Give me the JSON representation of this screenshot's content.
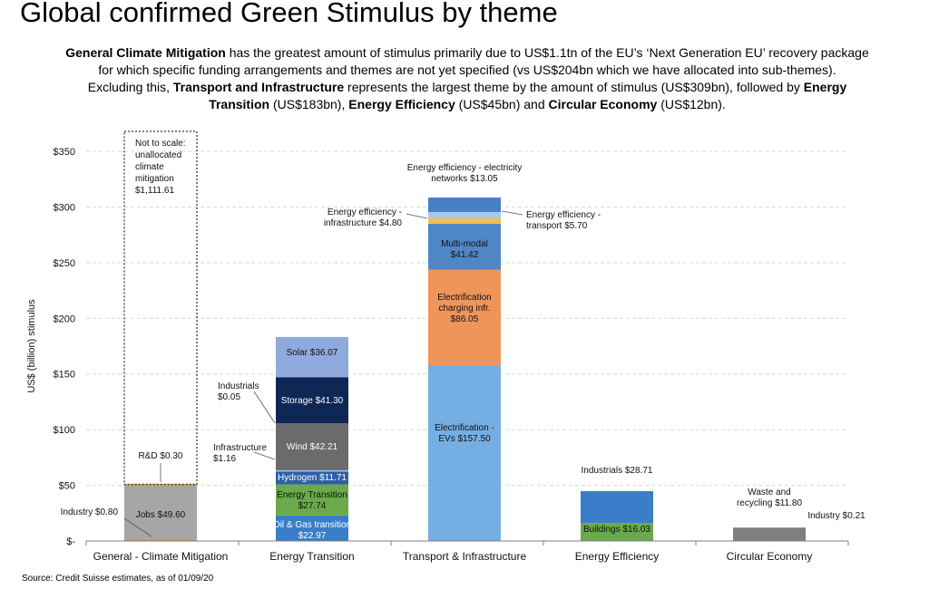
{
  "title": "Global confirmed Green Stimulus by theme",
  "subtitle": {
    "line1": [
      {
        "t": "General Climate Mitigation",
        "b": true
      },
      {
        "t": " has the greatest amount of stimulus primarily due to US$1.1tn of the EU’s ‘Next Generation EU’ recovery package",
        "b": false
      }
    ],
    "line2": [
      {
        "t": "for which specific funding arrangements and themes are not yet specified (vs US$204bn which we have allocated into sub-themes).",
        "b": false
      }
    ],
    "line3": [
      {
        "t": "Excluding this, ",
        "b": false
      },
      {
        "t": "Transport and Infrastructure",
        "b": true
      },
      {
        "t": " represents the largest theme by the amount of stimulus (US$309bn), followed by ",
        "b": false
      },
      {
        "t": "Energy",
        "b": true
      }
    ],
    "line4": [
      {
        "t": "Transition",
        "b": true
      },
      {
        "t": " (US$183bn), ",
        "b": false
      },
      {
        "t": "Energy Efficiency",
        "b": true
      },
      {
        "t": " (US$45bn) and ",
        "b": false
      },
      {
        "t": "Circular Economy",
        "b": true
      },
      {
        "t": " (US$12bn).",
        "b": false
      }
    ]
  },
  "source": "Source: Credit Suisse estimates, as of 01/09/20",
  "chart_data": {
    "type": "bar",
    "stacked": true,
    "ylabel": "US$ (billion) stimulus",
    "ylim": [
      0,
      350
    ],
    "yticks": [
      0,
      50,
      100,
      150,
      200,
      250,
      300,
      350
    ],
    "ytick_labels": [
      "$-",
      "$50",
      "$100",
      "$150",
      "$200",
      "$250",
      "$300",
      "$350"
    ],
    "grid": true,
    "categories": [
      "General - Climate Mitigation",
      "Energy Transition",
      "Transport & Infrastructure",
      "Energy Efficiency",
      "Circular Economy"
    ],
    "stacks": [
      {
        "category": "General - Climate Mitigation",
        "segments": [
          {
            "name": "Industry",
            "value": 0.8,
            "color": "#e8823a"
          },
          {
            "name": "Jobs",
            "value": 49.6,
            "color": "#a6a6a6"
          },
          {
            "name": "R&D",
            "value": 0.3,
            "color": "#f2c14e"
          }
        ],
        "unallocated": {
          "value": 1111.61,
          "label_lines": [
            "Not to scale:",
            "unallocated",
            "climate",
            "mitigation",
            "$1,111.61"
          ]
        }
      },
      {
        "category": "Energy Transition",
        "segments": [
          {
            "name": "Oil & Gas transition",
            "value": 22.97,
            "color": "#3a7dc9"
          },
          {
            "name": "Energy Transition",
            "value": 27.74,
            "color": "#6aaa4b"
          },
          {
            "name": "Hydrogen",
            "value": 11.71,
            "color": "#2f5fa8"
          },
          {
            "name": "Infrastructure",
            "value": 1.16,
            "color": "#9cc3e6"
          },
          {
            "name": "Wind",
            "value": 42.21,
            "color": "#6b6b6b"
          },
          {
            "name": "Industrials",
            "value": 0.05,
            "color": "#1f3d73"
          },
          {
            "name": "Storage",
            "value": 41.3,
            "color": "#0f2755"
          },
          {
            "name": "Solar",
            "value": 36.07,
            "color": "#8faadc"
          }
        ]
      },
      {
        "category": "Transport & Infrastructure",
        "segments": [
          {
            "name": "Electrification - EVs",
            "value": 157.5,
            "color": "#75aee3"
          },
          {
            "name": "Electrification charging infr.",
            "value": 86.05,
            "color": "#f0955a"
          },
          {
            "name": "Multi-modal",
            "value": 41.42,
            "color": "#4f86c6"
          },
          {
            "name": "Energy efficiency - infrastructure",
            "value": 4.8,
            "color": "#f2c14e"
          },
          {
            "name": "Energy efficiency - transport",
            "value": 5.7,
            "color": "#a9c8ea"
          },
          {
            "name": "Energy efficiency - electricity networks",
            "value": 13.05,
            "color": "#4a7fc8"
          }
        ]
      },
      {
        "category": "Energy Efficiency",
        "segments": [
          {
            "name": "Buildings",
            "value": 16.03,
            "color": "#6aaa4b"
          },
          {
            "name": "Industrials",
            "value": 28.71,
            "color": "#3a7dc9"
          }
        ]
      },
      {
        "category": "Circular Economy",
        "segments": [
          {
            "name": "Industry",
            "value": 0.21,
            "color": "#f0955a"
          },
          {
            "name": "Waste and recycling",
            "value": 11.8,
            "color": "#7f7f7f"
          }
        ]
      }
    ],
    "labels": [
      {
        "id": "industry-0-80",
        "lines": [
          "Industry  $0.80"
        ],
        "anchor": "end"
      },
      {
        "id": "jobs",
        "lines": [
          "Jobs  $49.60"
        ],
        "anchor": "middle"
      },
      {
        "id": "rd",
        "lines": [
          "R&D  $0.30"
        ],
        "anchor": "middle"
      },
      {
        "id": "oil-gas",
        "lines": [
          "Oil & Gas transition",
          "$22.97"
        ],
        "anchor": "middle",
        "color": "#ffffff"
      },
      {
        "id": "energy-transition",
        "lines": [
          "Energy Transition",
          "$27.74"
        ],
        "anchor": "middle"
      },
      {
        "id": "hydrogen",
        "lines": [
          "Hydrogen  $11.71"
        ],
        "anchor": "middle",
        "color": "#ffffff"
      },
      {
        "id": "infrastructure",
        "lines": [
          "Infrastructure",
          "$1.16"
        ],
        "anchor": "start"
      },
      {
        "id": "wind",
        "lines": [
          "Wind  $42.21"
        ],
        "anchor": "middle",
        "color": "#ffffff"
      },
      {
        "id": "industrials-0-05",
        "lines": [
          "Industrials",
          "$0.05"
        ],
        "anchor": "start"
      },
      {
        "id": "storage",
        "lines": [
          "Storage  $41.30"
        ],
        "anchor": "middle",
        "color": "#ffffff"
      },
      {
        "id": "solar",
        "lines": [
          "Solar  $36.07"
        ],
        "anchor": "middle"
      },
      {
        "id": "evs",
        "lines": [
          "Electrification  -",
          "EVs  $157.50"
        ],
        "anchor": "middle"
      },
      {
        "id": "charging",
        "lines": [
          "Electrification",
          "charging infr.",
          "$86.05"
        ],
        "anchor": "middle"
      },
      {
        "id": "multimodal",
        "lines": [
          "Multi-modal",
          "$41.42"
        ],
        "anchor": "middle"
      },
      {
        "id": "ee-infrastructure",
        "lines": [
          "Energy efficiency  -",
          "infrastructure   $4.80"
        ],
        "anchor": "end"
      },
      {
        "id": "ee-transport",
        "lines": [
          "Energy efficiency  -",
          "transport   $5.70"
        ],
        "anchor": "start"
      },
      {
        "id": "ee-networks",
        "lines": [
          "Energy efficiency  - electricity",
          "networks  $13.05"
        ],
        "anchor": "middle"
      },
      {
        "id": "buildings",
        "lines": [
          "Buildings  $16.03"
        ],
        "anchor": "middle"
      },
      {
        "id": "industrials-28-71",
        "lines": [
          "Industrials  $28.71"
        ],
        "anchor": "middle"
      },
      {
        "id": "waste",
        "lines": [
          "Waste and",
          "recycling  $11.80"
        ],
        "anchor": "middle"
      },
      {
        "id": "industry-0-21",
        "lines": [
          "Industry  $0.21"
        ],
        "anchor": "middle"
      }
    ]
  }
}
